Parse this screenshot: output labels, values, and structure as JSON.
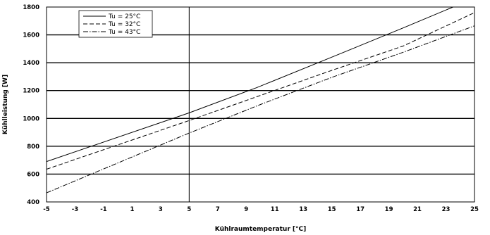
{
  "chart_data": {
    "type": "line",
    "title": "",
    "xlabel": "Kühlraumtemperatur [°C]",
    "ylabel": "Kühlleistung [W]",
    "xlim": [
      -5,
      25
    ],
    "ylim": [
      400,
      1800
    ],
    "x_ticks": [
      "-5",
      "-3",
      "-1",
      "1",
      "3",
      "5",
      "7",
      "9",
      "11",
      "13",
      "15",
      "17",
      "19",
      "21",
      "23",
      "25"
    ],
    "y_ticks": [
      "400",
      "600",
      "800",
      "1000",
      "1200",
      "1400",
      "1600",
      "1800"
    ],
    "grid": "horizontal",
    "legend_position": "top-left",
    "reference_lines": {
      "x": [
        5
      ],
      "y_heavy": [
        600,
        800,
        1000,
        1200,
        1400,
        1600
      ]
    },
    "series": [
      {
        "name": "Tu = 25°C",
        "style": "solid",
        "x": [
          -5,
          5,
          9.7,
          15,
          20,
          23.5
        ],
        "y": [
          690,
          1040,
          1220,
          1440,
          1650,
          1800
        ]
      },
      {
        "name": "Tu = 32°C",
        "style": "dashed",
        "x": [
          -5,
          5,
          10,
          15,
          20,
          25
        ],
        "y": [
          635,
          985,
          1165,
          1345,
          1520,
          1760
        ]
      },
      {
        "name": "Tu = 43°C",
        "style": "dash-dot",
        "x": [
          -5,
          0,
          5,
          10,
          15,
          20,
          25
        ],
        "y": [
          465,
          680,
          895,
          1100,
          1295,
          1475,
          1665
        ]
      }
    ]
  }
}
